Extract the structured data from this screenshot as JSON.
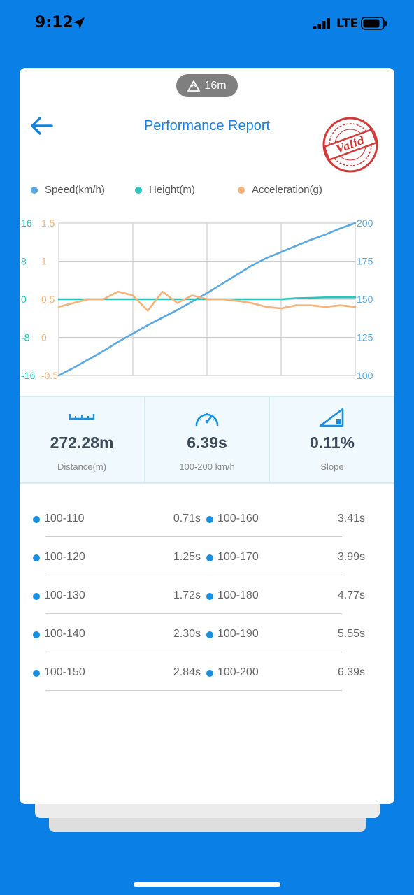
{
  "status": {
    "time": "9:12",
    "network": "LTE"
  },
  "header": {
    "altitude": "16m",
    "title": "Performance Report",
    "badge": "Valid"
  },
  "legend": [
    {
      "label": "Speed(km/h)",
      "color": "#5aa8e3"
    },
    {
      "label": "Height(m)",
      "color": "#2cc4b8"
    },
    {
      "label": "Acceleration(g)",
      "color": "#f5b27a"
    }
  ],
  "chart_data": {
    "type": "line",
    "grid": true,
    "legend_placement": "top",
    "axes": {
      "left_height": {
        "ticks": [
          "16",
          "8",
          "0",
          "-8",
          "-16"
        ],
        "range": [
          -16,
          16
        ],
        "color": "#2cc4b8"
      },
      "left_accel": {
        "ticks": [
          "1.5",
          "1",
          "0.5",
          "0",
          "-0.5"
        ],
        "range": [
          -0.5,
          1.5
        ],
        "color": "#f5b27a"
      },
      "right_speed": {
        "ticks": [
          "200",
          "175",
          "150",
          "125",
          "100"
        ],
        "range": [
          100,
          200
        ],
        "color": "#5aa8e3"
      }
    },
    "x": [
      0,
      0.05,
      0.1,
      0.15,
      0.2,
      0.25,
      0.3,
      0.35,
      0.4,
      0.45,
      0.5,
      0.55,
      0.6,
      0.65,
      0.7,
      0.75,
      0.8,
      0.85,
      0.9,
      0.95,
      1
    ],
    "series": [
      {
        "name": "Speed(km/h)",
        "axis": "right_speed",
        "color": "#5aa8e3",
        "values": [
          100,
          105,
          110.5,
          116,
          122,
          127.5,
          133,
          138,
          143,
          148.5,
          154,
          160,
          166,
          172,
          177,
          181,
          185,
          189,
          192.5,
          196.5,
          200
        ]
      },
      {
        "name": "Height(m)",
        "axis": "left_height",
        "color": "#2cc4b8",
        "values": [
          0,
          0,
          0,
          0,
          0,
          0,
          0,
          0,
          0,
          0,
          0,
          0,
          0,
          0,
          0,
          0,
          0.2,
          0.3,
          0.4,
          0.4,
          0.4
        ]
      },
      {
        "name": "Acceleration(g)",
        "axis": "left_accel",
        "color": "#f5b27a",
        "values": [
          0.4,
          0.45,
          0.5,
          0.5,
          0.6,
          0.55,
          0.35,
          0.6,
          0.45,
          0.55,
          0.5,
          0.5,
          0.48,
          0.45,
          0.4,
          0.38,
          0.42,
          0.42,
          0.4,
          0.42,
          0.4
        ]
      }
    ]
  },
  "stats": [
    {
      "value": "272.28m",
      "label": "Distance(m)",
      "icon": "ruler-icon"
    },
    {
      "value": "6.39s",
      "label": "100-200 km/h",
      "icon": "speedometer-icon"
    },
    {
      "value": "0.11%",
      "label": "Slope",
      "icon": "slope-icon"
    }
  ],
  "splits": [
    {
      "left": {
        "range": "100-110",
        "time": "0.71s"
      },
      "right": {
        "range": "100-160",
        "time": "3.41s"
      }
    },
    {
      "left": {
        "range": "100-120",
        "time": "1.25s"
      },
      "right": {
        "range": "100-170",
        "time": "3.99s"
      }
    },
    {
      "left": {
        "range": "100-130",
        "time": "1.72s"
      },
      "right": {
        "range": "100-180",
        "time": "4.77s"
      }
    },
    {
      "left": {
        "range": "100-140",
        "time": "2.30s"
      },
      "right": {
        "range": "100-190",
        "time": "5.55s"
      }
    },
    {
      "left": {
        "range": "100-150",
        "time": "2.84s"
      },
      "right": {
        "range": "100-200",
        "time": "6.39s"
      }
    }
  ]
}
